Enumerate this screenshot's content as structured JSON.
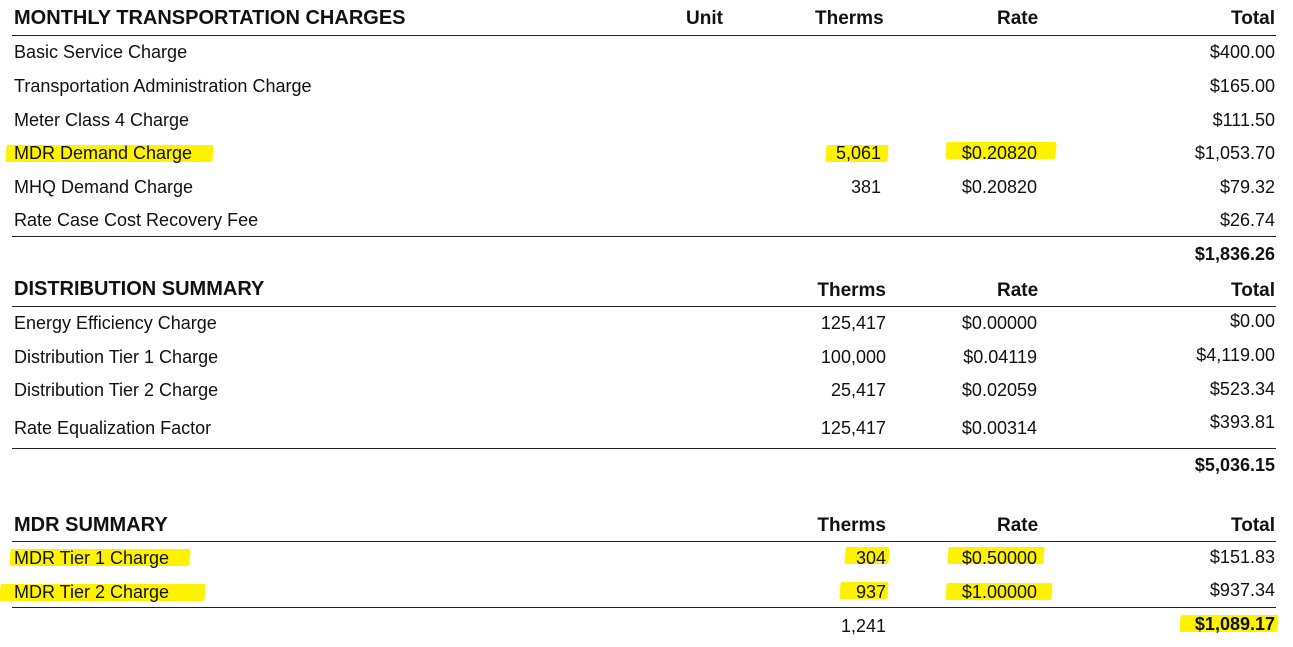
{
  "transportation": {
    "title": "MONTHLY TRANSPORTATION CHARGES",
    "col_unit": "Unit",
    "col_therms": "Therms",
    "col_rate": "Rate",
    "col_total": "Total",
    "rows": [
      {
        "label": "Basic Service Charge",
        "therms": "",
        "rate": "",
        "total": "$400.00"
      },
      {
        "label": "Transportation Administration Charge",
        "therms": "",
        "rate": "",
        "total": "$165.00"
      },
      {
        "label": "Meter Class 4 Charge",
        "therms": "",
        "rate": "",
        "total": "$111.50"
      },
      {
        "label": "MDR Demand Charge",
        "therms": "5,061",
        "rate": "$0.20820",
        "total": "$1,053.70"
      },
      {
        "label": "MHQ Demand Charge",
        "therms": "381",
        "rate": "$0.20820",
        "total": "$79.32"
      },
      {
        "label": "Rate Case Cost Recovery Fee",
        "therms": "",
        "rate": "",
        "total": "$26.74"
      }
    ],
    "subtotal": "$1,836.26"
  },
  "distribution": {
    "title": "DISTRIBUTION SUMMARY",
    "col_therms": "Therms",
    "col_rate": "Rate",
    "col_total": "Total",
    "rows": [
      {
        "label": "Energy Efficiency Charge",
        "therms": "125,417",
        "rate": "$0.00000",
        "total": "$0.00"
      },
      {
        "label": "Distribution Tier 1 Charge",
        "therms": "100,000",
        "rate": "$0.04119",
        "total": "$4,119.00"
      },
      {
        "label": "Distribution Tier 2 Charge",
        "therms": "25,417",
        "rate": "$0.02059",
        "total": "$523.34"
      },
      {
        "label": "Rate Equalization Factor",
        "therms": "125,417",
        "rate": "$0.00314",
        "total": "$393.81"
      }
    ],
    "subtotal": "$5,036.15"
  },
  "mdr": {
    "title": "MDR SUMMARY",
    "col_therms": "Therms",
    "col_rate": "Rate",
    "col_total": "Total",
    "rows": [
      {
        "label": "MDR Tier 1 Charge",
        "therms": "304",
        "rate": "$0.50000",
        "total": "$151.83"
      },
      {
        "label": "MDR Tier 2 Charge",
        "therms": "937",
        "rate": "$1.00000",
        "total": "$937.34"
      }
    ],
    "therms_total": "1,241",
    "subtotal": "$1,089.17"
  },
  "colors": {
    "highlight": "#fff200",
    "text": "#111111"
  }
}
